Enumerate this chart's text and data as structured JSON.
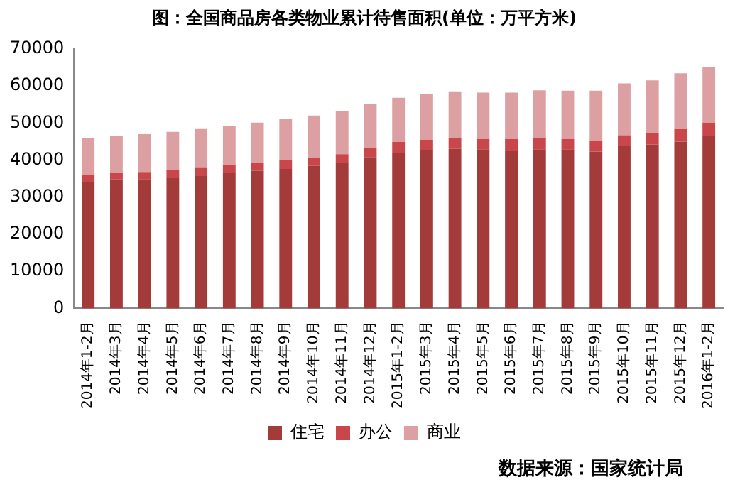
{
  "chart_data": {
    "type": "bar",
    "title": "图：全国商品房各类物业累计待售面积(单位：万平方米)",
    "categories": [
      "2014年1-2月",
      "2014年3月",
      "2014年4月",
      "2014年5月",
      "2014年6月",
      "2014年7月",
      "2014年8月",
      "2014年9月",
      "2014年10月",
      "2014年11月",
      "2014年12月",
      "2015年1-2月",
      "2015年3月",
      "2015年4月",
      "2015年5月",
      "2015年6月",
      "2015年7月",
      "2015年8月",
      "2015年9月",
      "2015年10月",
      "2015年11月",
      "2015年12月",
      "2016年1-2月"
    ],
    "series": [
      {
        "name": "住宅",
        "color": "#a33b3b",
        "values": [
          34000,
          34800,
          34900,
          35100,
          35700,
          36500,
          37100,
          37600,
          38400,
          39300,
          40800,
          42000,
          42800,
          43000,
          42900,
          42600,
          42900,
          42900,
          42300,
          43800,
          44200,
          45000,
          46600
        ]
      },
      {
        "name": "办公",
        "color": "#c9474a",
        "values": [
          2100,
          1700,
          1900,
          2300,
          2400,
          2100,
          2200,
          2500,
          2200,
          2300,
          2400,
          2900,
          2700,
          2900,
          2800,
          3100,
          3000,
          2800,
          3000,
          2900,
          3000,
          3400,
          3500
        ]
      },
      {
        "name": "商业",
        "color": "#dca0a3",
        "values": [
          9800,
          9900,
          10200,
          10200,
          10300,
          10500,
          10800,
          11000,
          11400,
          11700,
          11900,
          11900,
          12300,
          12600,
          12500,
          12500,
          12900,
          13000,
          13400,
          14000,
          14300,
          15000,
          15000
        ]
      }
    ],
    "stacked": true,
    "ylim": [
      0,
      70000
    ],
    "yticks": [
      0,
      10000,
      20000,
      30000,
      40000,
      50000,
      60000,
      70000
    ],
    "grid": false,
    "legend": "bottom",
    "annotations": [
      "数据来源：国家统计局"
    ]
  }
}
